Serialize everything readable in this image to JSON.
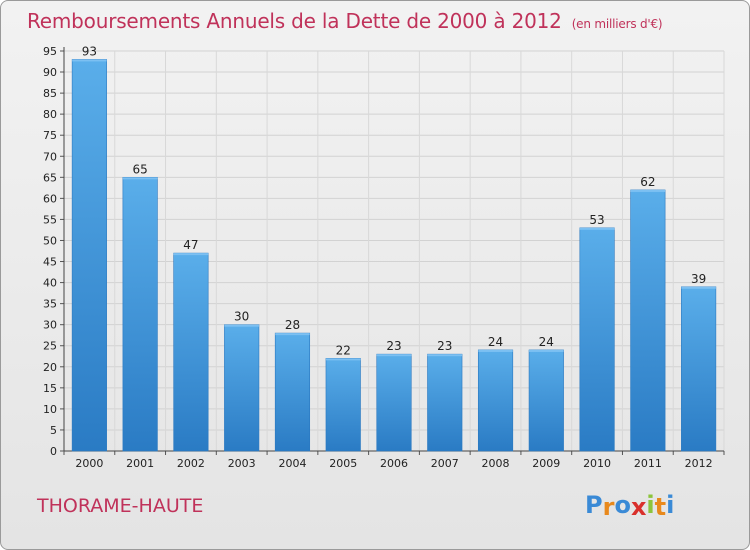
{
  "chart_data": {
    "type": "bar",
    "title": "Remboursements Annuels de la Dette de 2000 à 2012",
    "subtitle": "(en milliers d'€)",
    "categories": [
      "2000",
      "2001",
      "2002",
      "2003",
      "2004",
      "2005",
      "2006",
      "2007",
      "2008",
      "2009",
      "2010",
      "2011",
      "2012"
    ],
    "values": [
      93,
      65,
      47,
      30,
      28,
      22,
      23,
      23,
      24,
      24,
      53,
      62,
      39
    ],
    "ylim": [
      0,
      95
    ],
    "ytick_step": 5,
    "grid": true,
    "bar_color": "#4a9fe0"
  },
  "footer": {
    "commune": "THORAME-HAUTE",
    "logo_letters": [
      "P",
      "r",
      "o",
      "x",
      "i",
      "t",
      "i"
    ],
    "logo_colors": [
      "#3a8ad6",
      "#e8891c",
      "#3a8ad6",
      "#d9302c",
      "#8cc43c",
      "#e8891c",
      "#3a8ad6"
    ]
  }
}
